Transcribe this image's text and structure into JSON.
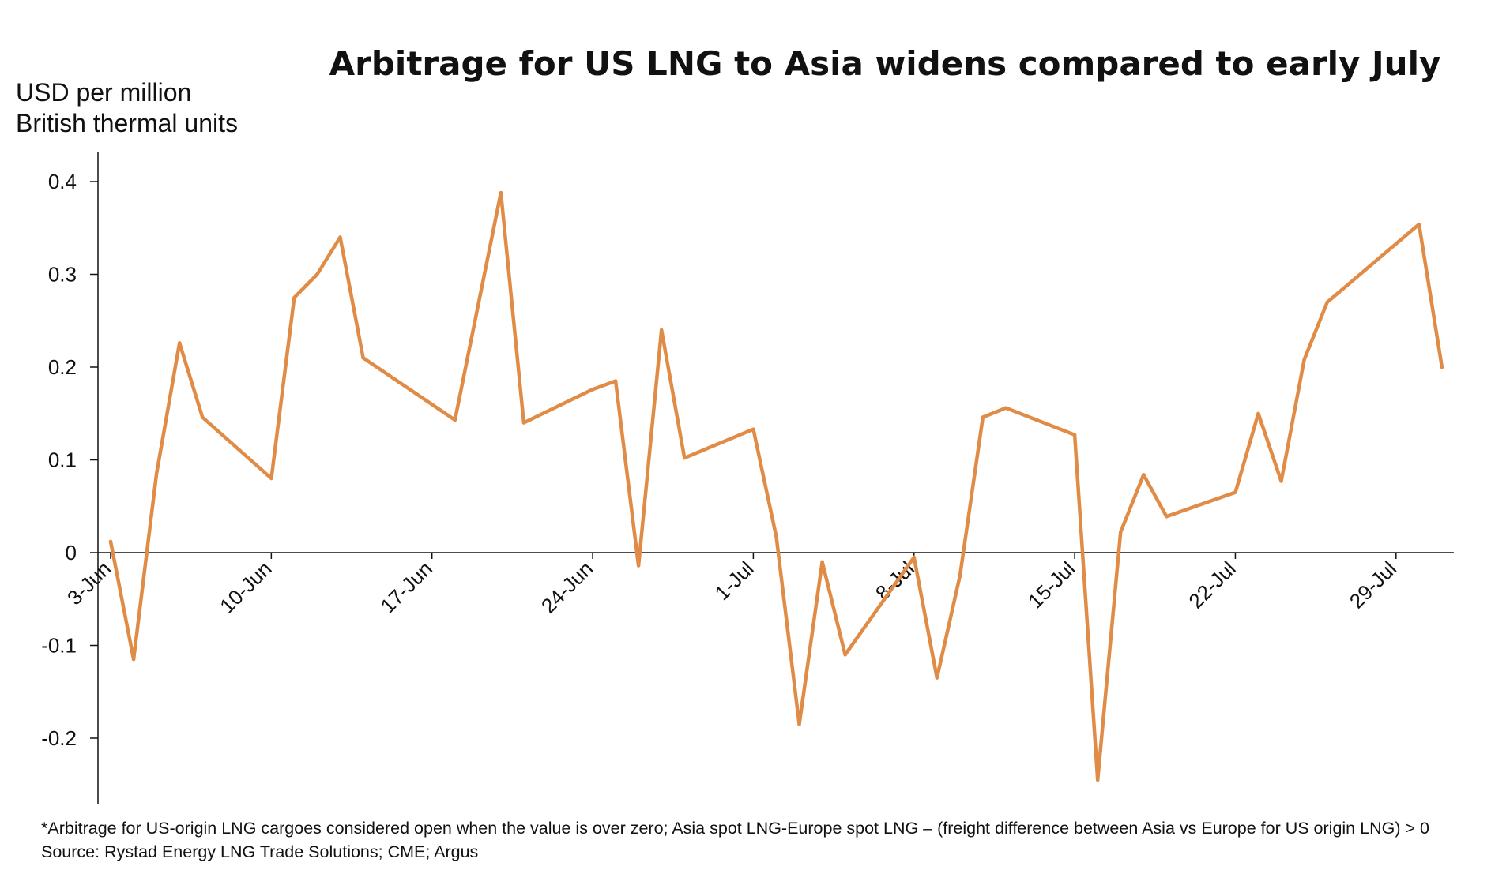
{
  "chart_data": {
    "type": "line",
    "title": "Arbitrage  for US LNG to Asia widens compared to early July",
    "ylabel_lines": [
      "USD per million",
      "British thermal units"
    ],
    "xlabel": "",
    "ylim": [
      -0.27,
      0.43
    ],
    "y_ticks": [
      -0.2,
      -0.1,
      0,
      0.1,
      0.2,
      0.3,
      0.4
    ],
    "y_tick_labels": [
      "-0.2",
      "-0.1",
      "0",
      "0.1",
      "0.2",
      "0.3",
      "0.4"
    ],
    "x_tick_labels": [
      "3-Jun",
      "10-Jun",
      "17-Jun",
      "24-Jun",
      "1-Jul",
      "8-Jul",
      "15-Jul",
      "22-Jul",
      "29-Jul"
    ],
    "x_tick_dates": [
      "2019-06-03",
      "2019-06-10",
      "2019-06-17",
      "2019-06-24",
      "2019-07-01",
      "2019-07-08",
      "2019-07-15",
      "2019-07-22",
      "2019-07-29"
    ],
    "grid": false,
    "legend": "none",
    "series": [
      {
        "color": "#e08c47",
        "points": [
          {
            "x": "2019-06-03",
            "y": 0.012
          },
          {
            "x": "2019-06-04",
            "y": -0.115
          },
          {
            "x": "2019-06-05",
            "y": 0.085
          },
          {
            "x": "2019-06-06",
            "y": 0.226
          },
          {
            "x": "2019-06-07",
            "y": 0.146
          },
          {
            "x": "2019-06-10",
            "y": 0.08
          },
          {
            "x": "2019-06-11",
            "y": 0.275
          },
          {
            "x": "2019-06-12",
            "y": 0.3
          },
          {
            "x": "2019-06-13",
            "y": 0.34
          },
          {
            "x": "2019-06-14",
            "y": 0.21
          },
          {
            "x": "2019-06-18",
            "y": 0.143
          },
          {
            "x": "2019-06-20",
            "y": 0.388
          },
          {
            "x": "2019-06-21",
            "y": 0.14
          },
          {
            "x": "2019-06-24",
            "y": 0.176
          },
          {
            "x": "2019-06-25",
            "y": 0.185
          },
          {
            "x": "2019-06-26",
            "y": -0.014
          },
          {
            "x": "2019-06-27",
            "y": 0.24
          },
          {
            "x": "2019-06-28",
            "y": 0.102
          },
          {
            "x": "2019-07-01",
            "y": 0.133
          },
          {
            "x": "2019-07-02",
            "y": 0.017
          },
          {
            "x": "2019-07-03",
            "y": -0.185
          },
          {
            "x": "2019-07-04",
            "y": -0.01
          },
          {
            "x": "2019-07-05",
            "y": -0.11
          },
          {
            "x": "2019-07-08",
            "y": -0.005
          },
          {
            "x": "2019-07-09",
            "y": -0.135
          },
          {
            "x": "2019-07-10",
            "y": -0.025
          },
          {
            "x": "2019-07-11",
            "y": 0.146
          },
          {
            "x": "2019-07-12",
            "y": 0.156
          },
          {
            "x": "2019-07-15",
            "y": 0.127
          },
          {
            "x": "2019-07-16",
            "y": -0.245
          },
          {
            "x": "2019-07-17",
            "y": 0.022
          },
          {
            "x": "2019-07-18",
            "y": 0.084
          },
          {
            "x": "2019-07-19",
            "y": 0.039
          },
          {
            "x": "2019-07-22",
            "y": 0.065
          },
          {
            "x": "2019-07-23",
            "y": 0.15
          },
          {
            "x": "2019-07-24",
            "y": 0.077
          },
          {
            "x": "2019-07-25",
            "y": 0.208
          },
          {
            "x": "2019-07-26",
            "y": 0.27
          },
          {
            "x": "2019-07-30",
            "y": 0.354
          },
          {
            "x": "2019-07-31",
            "y": 0.2
          }
        ]
      }
    ],
    "notes": [
      "*Arbitrage for US-origin LNG cargoes considered open when the value is over zero; Asia spot LNG-Europe spot LNG – (freight difference between Asia vs Europe for US origin LNG) > 0",
      "Source: Rystad Energy LNG Trade Solutions; CME; Argus"
    ]
  }
}
